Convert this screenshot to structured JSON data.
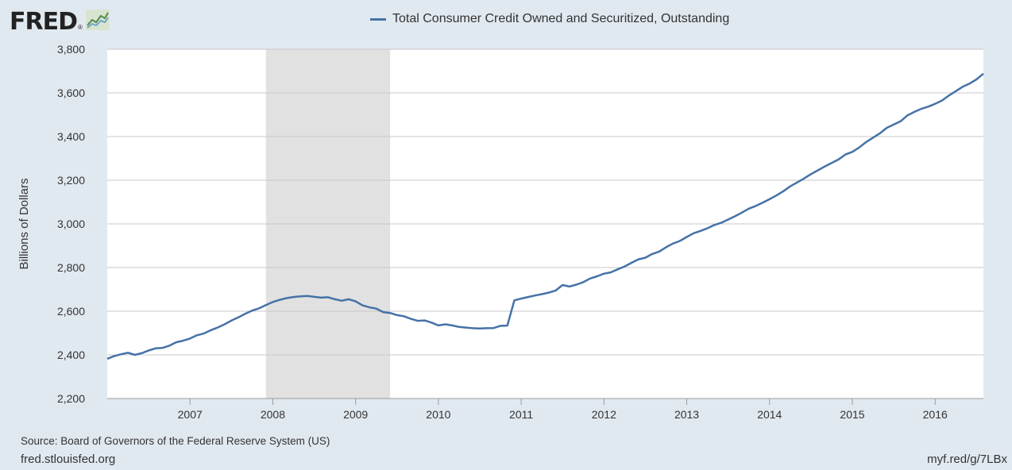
{
  "logo": {
    "text": "FRED",
    "reg": "®",
    "icon": "fred-chart-icon"
  },
  "legend": {
    "series_name": "Total Consumer Credit Owned and Securitized, Outstanding",
    "color": "#4572a7"
  },
  "footer": {
    "source": "Source: Board of Governors of the Federal Reserve System (US)",
    "site": "fred.stlouisfed.org",
    "shortlink": "myf.red/g/7LBx"
  },
  "chart_data": {
    "type": "line",
    "ylabel": "Billions of Dollars",
    "xlabel": "",
    "ylim": [
      2200,
      3800
    ],
    "yticks": [
      "2,200",
      "2,400",
      "2,600",
      "2,800",
      "3,000",
      "3,200",
      "3,400",
      "3,600",
      "3,800"
    ],
    "ytick_values": [
      2200,
      2400,
      2600,
      2800,
      3000,
      3200,
      3400,
      3600,
      3800
    ],
    "xlim": [
      2006.0,
      2016.5833
    ],
    "xticks": [
      "2007",
      "2008",
      "2009",
      "2010",
      "2011",
      "2012",
      "2013",
      "2014",
      "2015",
      "2016"
    ],
    "xtick_values": [
      2007,
      2008,
      2009,
      2010,
      2011,
      2012,
      2013,
      2014,
      2015,
      2016
    ],
    "grid": true,
    "recession": {
      "start": 2007.9167,
      "end": 2009.4167,
      "color": "#e1e1e1"
    },
    "series": [
      {
        "name": "Total Consumer Credit Owned and Securitized, Outstanding",
        "color": "#4572a7",
        "x": [
          2006.0,
          2006.083,
          2006.167,
          2006.25,
          2006.333,
          2006.417,
          2006.5,
          2006.583,
          2006.667,
          2006.75,
          2006.833,
          2006.917,
          2007.0,
          2007.083,
          2007.167,
          2007.25,
          2007.333,
          2007.417,
          2007.5,
          2007.583,
          2007.667,
          2007.75,
          2007.833,
          2007.917,
          2008.0,
          2008.083,
          2008.167,
          2008.25,
          2008.333,
          2008.417,
          2008.5,
          2008.583,
          2008.667,
          2008.75,
          2008.833,
          2008.917,
          2009.0,
          2009.083,
          2009.167,
          2009.25,
          2009.333,
          2009.417,
          2009.5,
          2009.583,
          2009.667,
          2009.75,
          2009.833,
          2009.917,
          2010.0,
          2010.083,
          2010.167,
          2010.25,
          2010.333,
          2010.417,
          2010.5,
          2010.583,
          2010.667,
          2010.75,
          2010.833,
          2010.917,
          2011.0,
          2011.083,
          2011.167,
          2011.25,
          2011.333,
          2011.417,
          2011.5,
          2011.583,
          2011.667,
          2011.75,
          2011.833,
          2011.917,
          2012.0,
          2012.083,
          2012.167,
          2012.25,
          2012.333,
          2012.417,
          2012.5,
          2012.583,
          2012.667,
          2012.75,
          2012.833,
          2012.917,
          2013.0,
          2013.083,
          2013.167,
          2013.25,
          2013.333,
          2013.417,
          2013.5,
          2013.583,
          2013.667,
          2013.75,
          2013.833,
          2013.917,
          2014.0,
          2014.083,
          2014.167,
          2014.25,
          2014.333,
          2014.417,
          2014.5,
          2014.583,
          2014.667,
          2014.75,
          2014.833,
          2014.917,
          2015.0,
          2015.083,
          2015.167,
          2015.25,
          2015.333,
          2015.417,
          2015.5,
          2015.583,
          2015.667,
          2015.75,
          2015.833,
          2015.917,
          2016.0,
          2016.083,
          2016.167,
          2016.25,
          2016.333,
          2016.417,
          2016.5,
          2016.583
        ],
        "values": [
          2382,
          2394,
          2403,
          2410,
          2400,
          2408,
          2420,
          2430,
          2432,
          2442,
          2458,
          2465,
          2475,
          2490,
          2498,
          2513,
          2525,
          2540,
          2557,
          2572,
          2588,
          2603,
          2613,
          2628,
          2642,
          2652,
          2660,
          2665,
          2668,
          2670,
          2666,
          2662,
          2664,
          2655,
          2648,
          2655,
          2645,
          2627,
          2618,
          2612,
          2596,
          2592,
          2582,
          2577,
          2565,
          2556,
          2558,
          2548,
          2535,
          2540,
          2535,
          2528,
          2525,
          2522,
          2521,
          2522,
          2523,
          2533,
          2534,
          2650,
          2658,
          2665,
          2672,
          2678,
          2685,
          2695,
          2720,
          2713,
          2722,
          2733,
          2750,
          2760,
          2772,
          2778,
          2792,
          2805,
          2822,
          2838,
          2845,
          2862,
          2873,
          2893,
          2910,
          2922,
          2940,
          2957,
          2968,
          2980,
          2995,
          3005,
          3020,
          3035,
          3052,
          3070,
          3082,
          3097,
          3113,
          3130,
          3150,
          3172,
          3190,
          3208,
          3228,
          3245,
          3263,
          3279,
          3295,
          3318,
          3330,
          3350,
          3375,
          3395,
          3415,
          3440,
          3455,
          3470,
          3497,
          3513,
          3527,
          3537,
          3550,
          3565,
          3588,
          3608,
          3628,
          3643,
          3662,
          3688
        ]
      }
    ]
  }
}
